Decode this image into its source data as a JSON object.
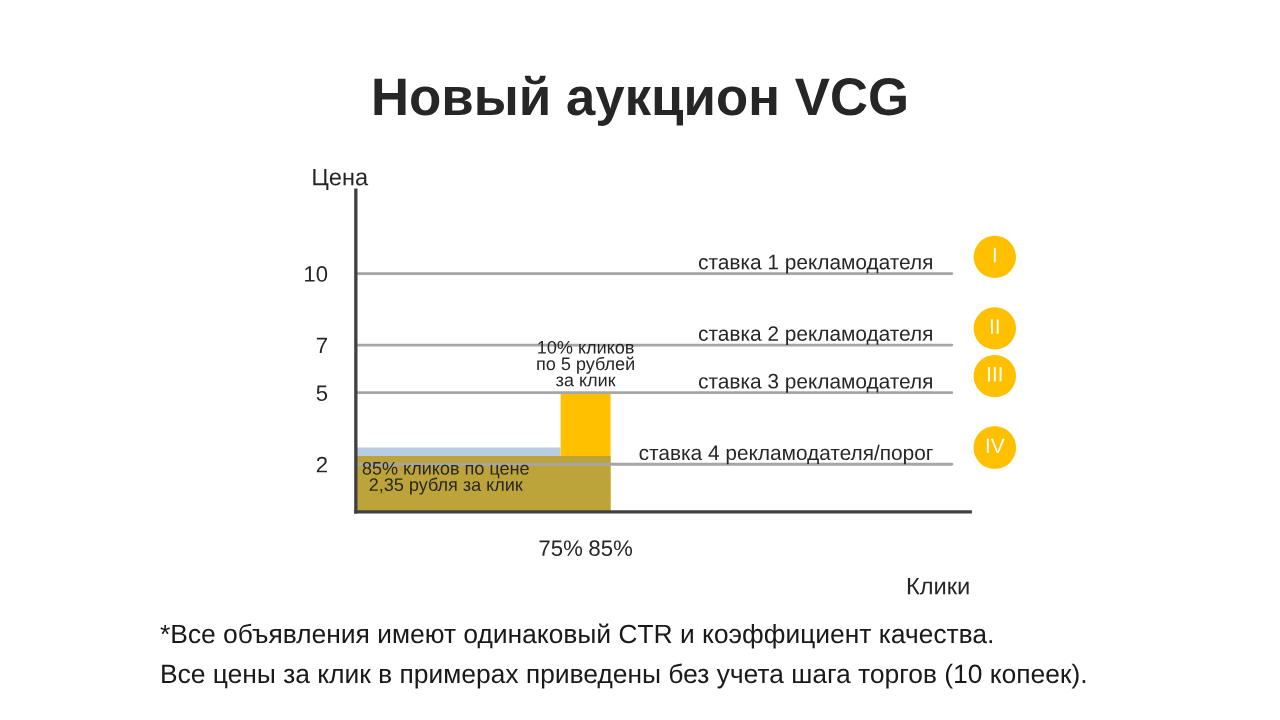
{
  "chart_data": {
    "type": "area",
    "title": "Новый аукцион VCG",
    "xlabel": "Клики",
    "ylabel": "Цена",
    "series": [
      {
        "color": "#b8cce4",
        "x": [
          34,
          75
        ],
        "values": [
          2.7,
          2.7
        ]
      },
      {
        "color": "#ffc000",
        "x": [
          75,
          85
        ],
        "values": [
          5,
          5
        ]
      },
      {
        "color": "#bda43a",
        "x": [
          34,
          85
        ],
        "values": [
          2.35,
          2.35
        ]
      }
    ],
    "xlim": [
      34,
      157
    ],
    "xticks": [
      {
        "value": 75,
        "label": "75%"
      },
      {
        "value": 85,
        "label": "85%"
      }
    ],
    "ylim": [
      0,
      13.5
    ],
    "yticks": [
      2,
      5,
      7,
      10
    ],
    "grid": false,
    "legend": false,
    "ref_lines": [
      {
        "axis": "y",
        "value": 10,
        "label": "ставка 1 рекламодателя",
        "color": "#a6a6a6"
      },
      {
        "axis": "y",
        "value": 7,
        "label": "ставка 2 рекламодателя",
        "color": "#a6a6a6"
      },
      {
        "axis": "y",
        "value": 5,
        "label": "ставка 3 рекламодателя",
        "color": "#a6a6a6"
      },
      {
        "axis": "y",
        "value": 2,
        "label": "ставка 4 рекламодателя/порог",
        "color": "#a6a6a6"
      }
    ],
    "annotations": [
      "I",
      "II",
      "III",
      "IV",
      {
        "text": "10% кликов\nпо 5 рублей\nза клик",
        "x": 80,
        "y": 5
      },
      {
        "text": "85% кликов по цене\n2,35 рубля за клик",
        "x": 52,
        "y": 2.35
      },
      "*Все объявления имеют одинаковый CTR и коэффициент качества.",
      "Все цены за клик в примерах приведены без учета шага торгов (10 копеек)."
    ]
  }
}
